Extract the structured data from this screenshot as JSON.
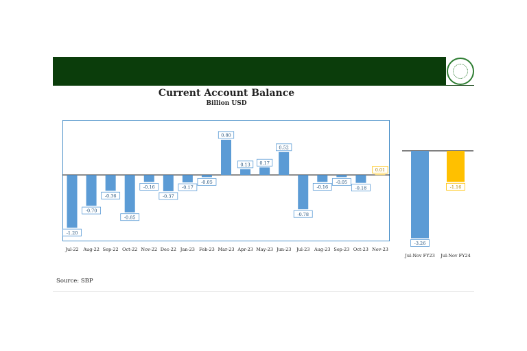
{
  "page": {
    "source_text": "Source: SBP",
    "colors": {
      "banner": "#0b3d0b",
      "bar_main": "#5b9bd5",
      "bar_highlight": "#ffc000"
    },
    "logo_icon": "state-bank-seal-icon"
  },
  "chart_data": [
    {
      "type": "bar",
      "title": "Current Account Balance",
      "subtitle": "Billion USD",
      "categories": [
        "Jul-22",
        "Aug-22",
        "Sep-22",
        "Oct-22",
        "Nov-22",
        "Dec-22",
        "Jan-23",
        "Feb-23",
        "Mar-23",
        "Apr-23",
        "May-23",
        "Jun-23",
        "Jul-23",
        "Aug-23",
        "Sep-23",
        "Oct-23",
        "Nov-23"
      ],
      "values": [
        -1.2,
        -0.7,
        -0.36,
        -0.85,
        -0.16,
        -0.37,
        -0.17,
        -0.05,
        0.8,
        0.13,
        0.17,
        0.52,
        -0.78,
        -0.16,
        -0.05,
        -0.18,
        0.01
      ],
      "labels": [
        "-1.20",
        "-0.70",
        "-0.36",
        "-0.85",
        "-0.16",
        "-0.37",
        "-0.17",
        "-0.05",
        "0.80",
        "0.13",
        "0.17",
        "0.52",
        "-0.78",
        "-0.16",
        "-0.05",
        "-0.18",
        "0.01"
      ],
      "highlight": [
        false,
        false,
        false,
        false,
        false,
        false,
        false,
        false,
        false,
        false,
        false,
        false,
        false,
        false,
        false,
        false,
        true
      ],
      "ylim": [
        -1.4,
        1.0
      ],
      "grid": false,
      "legend": "none"
    },
    {
      "type": "bar",
      "categories": [
        "Jul-Nov FY23",
        "Jul-Nov FY24"
      ],
      "values": [
        -3.26,
        -1.16
      ],
      "labels": [
        "-3.26",
        "-1.16"
      ],
      "highlight": [
        false,
        true
      ],
      "ylim": [
        -3.4,
        0
      ],
      "grid": false,
      "legend": "none"
    }
  ]
}
